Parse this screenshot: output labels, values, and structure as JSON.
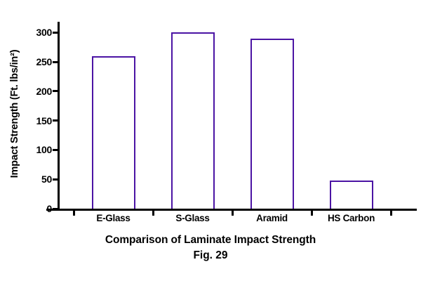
{
  "figure": {
    "title": "Comparison of Laminate Impact Strength",
    "caption": "Fig. 29",
    "y_axis_title": "Impact Strength (Ft. lbs/in²)"
  },
  "colors": {
    "bar_outline": "#4b14a4",
    "bar_fill": "#ffffff",
    "axis": "#000000",
    "text": "#000000",
    "background": "#ffffff"
  },
  "chart_data": {
    "type": "bar",
    "categories": [
      "E-Glass",
      "S-Glass",
      "Aramid",
      "HS Carbon"
    ],
    "values": [
      260,
      300,
      290,
      48
    ],
    "title": "Comparison of Laminate Impact Strength",
    "xlabel": "",
    "ylabel": "Impact Strength (Ft. lbs/in²)",
    "ylim": [
      0,
      300
    ],
    "yticks": [
      0,
      50,
      100,
      150,
      200,
      250,
      300
    ],
    "grid": false,
    "legend": "none",
    "bar_style": "outlined-unfilled",
    "caption": "Fig. 29"
  }
}
